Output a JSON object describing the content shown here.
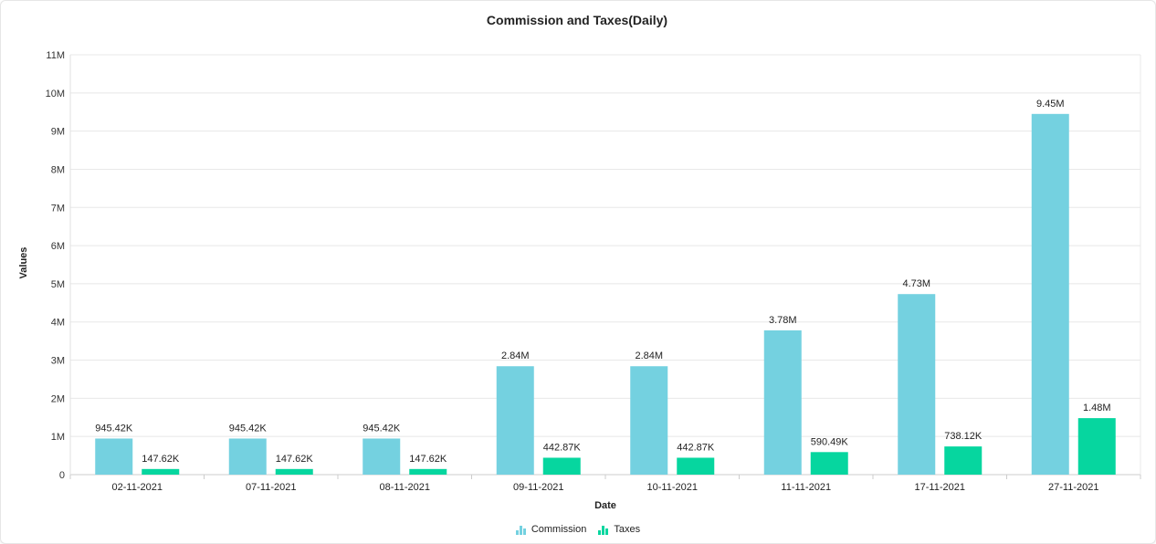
{
  "chart_data": {
    "type": "bar",
    "title": "Commission and Taxes(Daily)",
    "xlabel": "Date",
    "ylabel": "Values",
    "categories": [
      "02-11-2021",
      "07-11-2021",
      "08-11-2021",
      "09-11-2021",
      "10-11-2021",
      "11-11-2021",
      "17-11-2021",
      "27-11-2021"
    ],
    "series": [
      {
        "name": "Commission",
        "color": "#74d1e0",
        "values": [
          945420,
          945420,
          945420,
          2840000,
          2840000,
          3780000,
          4730000,
          9450000
        ],
        "labels": [
          "945.42K",
          "945.42K",
          "945.42K",
          "2.84M",
          "2.84M",
          "3.78M",
          "4.73M",
          "9.45M"
        ]
      },
      {
        "name": "Taxes",
        "color": "#06d69f",
        "values": [
          147620,
          147620,
          147620,
          442870,
          442870,
          590490,
          738120,
          1480000
        ],
        "labels": [
          "147.62K",
          "147.62K",
          "147.62K",
          "442.87K",
          "442.87K",
          "590.49K",
          "738.12K",
          "1.48M"
        ]
      }
    ],
    "ylim": [
      0,
      11000000
    ],
    "yticks": [
      0,
      1000000,
      2000000,
      3000000,
      4000000,
      5000000,
      6000000,
      7000000,
      8000000,
      9000000,
      10000000,
      11000000
    ],
    "ytick_labels": [
      "0",
      "1M",
      "2M",
      "3M",
      "4M",
      "5M",
      "6M",
      "7M",
      "8M",
      "9M",
      "10M",
      "11M"
    ],
    "grid": true,
    "legend_position": "bottom-center"
  }
}
